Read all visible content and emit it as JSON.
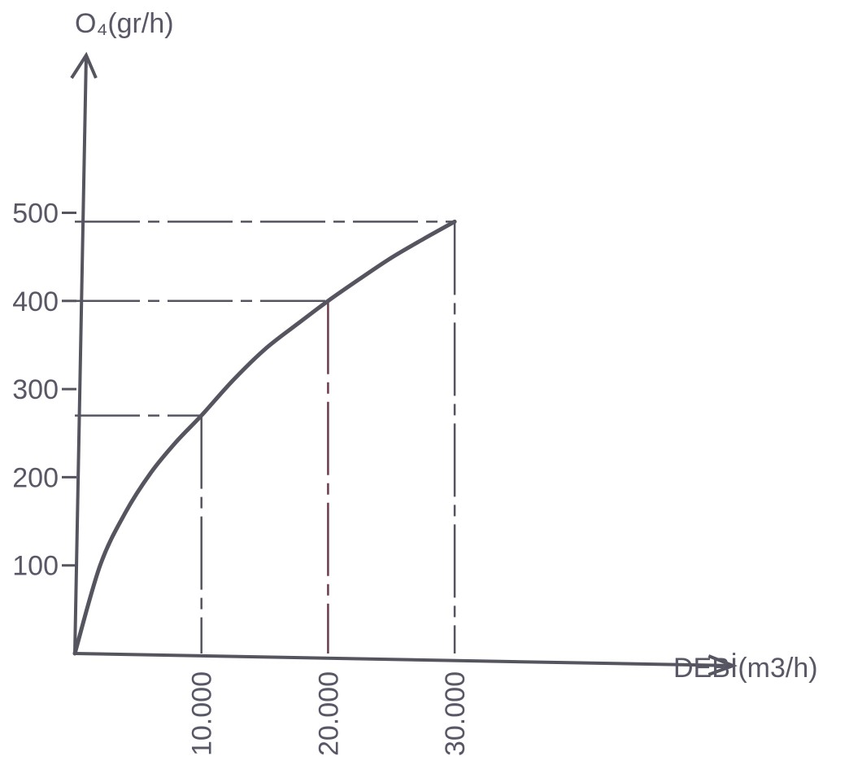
{
  "chart_data": {
    "type": "line",
    "title": "",
    "xlabel": "DEBİ(m3/h)",
    "ylabel": "O₄(gr/h)",
    "x_ticks": [
      {
        "value": 10000,
        "label": "10.000"
      },
      {
        "value": 20000,
        "label": "20.000"
      },
      {
        "value": 30000,
        "label": "30.000"
      }
    ],
    "y_ticks": [
      {
        "value": 100,
        "label": "100"
      },
      {
        "value": 200,
        "label": "200"
      },
      {
        "value": 300,
        "label": "300"
      },
      {
        "value": 400,
        "label": "400"
      },
      {
        "value": 500,
        "label": "500"
      }
    ],
    "series": [
      {
        "x": [
          0,
          2000,
          4000,
          6000,
          8000,
          10000,
          12500,
          15000,
          17500,
          20000,
          22500,
          25000,
          27500,
          30000
        ],
        "y": [
          0,
          100,
          160,
          205,
          240,
          270,
          310,
          345,
          373,
          400,
          425,
          449,
          470,
          490
        ]
      }
    ],
    "reference_points": [
      {
        "x": 10000,
        "y": 270
      },
      {
        "x": 20000,
        "y": 400
      },
      {
        "x": 30000,
        "y": 490
      }
    ],
    "xlim": [
      0,
      48000
    ],
    "ylim": [
      0,
      640
    ],
    "grid": false,
    "legend": "none",
    "colors": {
      "ink": "#555560",
      "text": "#575766",
      "drop_line_20000": "#6a3c4c"
    }
  }
}
